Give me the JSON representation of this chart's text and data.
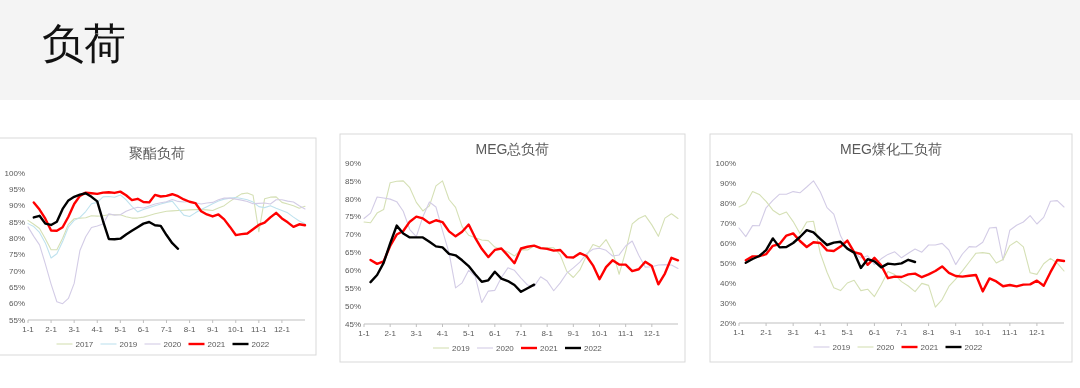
{
  "chart_data": [
    {
      "type": "other",
      "title": "负荷"
    },
    {
      "type": "line",
      "title": "聚酯负荷",
      "categories": [
        "1-1",
        null,
        null,
        null,
        "2-1",
        null,
        null,
        null,
        "3-1",
        null,
        null,
        null,
        "4-1",
        null,
        null,
        null,
        "5-1",
        null,
        null,
        null,
        "6-1",
        null,
        null,
        null,
        "7-1",
        null,
        null,
        null,
        "8-1",
        null,
        null,
        null,
        "9-1",
        null,
        null,
        null,
        "10-1",
        null,
        null,
        null,
        "11-1",
        null,
        null,
        null,
        "12-1",
        null,
        null,
        null,
        null
      ],
      "ylim": [
        55,
        100
      ],
      "yticks": [
        {
          "value": 55,
          "label": "55%"
        },
        {
          "value": 60,
          "label": "60%"
        },
        {
          "value": 65,
          "label": "65%"
        },
        {
          "value": 70,
          "label": "70%"
        },
        {
          "value": 75,
          "label": "75%"
        },
        {
          "value": 80,
          "label": "80%"
        },
        {
          "value": 85,
          "label": "85%"
        },
        {
          "value": 90,
          "label": "90%"
        },
        {
          "value": 95,
          "label": "95%"
        },
        {
          "value": 100,
          "label": "100%"
        }
      ],
      "legend": "bottom",
      "marker": "none",
      "line_style": "solid",
      "series": [
        {
          "name": "2017",
          "color": "#d5e0b5",
          "values": [
            85.5,
            84.3,
            83,
            79.9,
            76.5,
            76.5,
            80,
            84.3,
            86,
            86.2,
            86.3,
            86.9,
            86.8,
            86.9,
            87.2,
            87.2,
            87.2,
            86.6,
            86.2,
            86.2,
            86.5,
            87,
            87.5,
            87.9,
            88.3,
            88.4,
            88.5,
            88.6,
            88.7,
            88.8,
            88.8,
            88.7,
            88.5,
            89.3,
            90,
            91.3,
            92.5,
            93.6,
            93.9,
            93.2,
            82,
            92.1,
            92.6,
            92.7,
            91,
            90.5,
            90,
            89.2,
            89.8
          ]
        },
        {
          "name": "2019",
          "color": "#bfe2ee",
          "values": [
            84.5,
            83.6,
            81.8,
            78.6,
            74,
            75.3,
            79,
            83.4,
            85.5,
            86.4,
            88.2,
            90.6,
            91,
            92.7,
            92.8,
            92.6,
            93.3,
            91.8,
            89.8,
            88.1,
            88.8,
            89.4,
            90,
            90.5,
            91,
            91.4,
            89.2,
            87.1,
            86.7,
            87.8,
            88.8,
            89.7,
            90.6,
            91.4,
            92,
            92.3,
            92.5,
            92.2,
            91.8,
            91.1,
            89.7,
            89.4,
            90,
            89.2,
            88.5,
            87.8,
            86.5,
            85.3,
            84.5
          ]
        },
        {
          "name": "2020",
          "color": "#d3cce6",
          "values": [
            83.5,
            80.6,
            78,
            72.2,
            66,
            60.6,
            60,
            61.6,
            66.2,
            76.3,
            80.5,
            83.3,
            83.8,
            84.4,
            87.5,
            87.1,
            87.2,
            88.3,
            89,
            89.5,
            89.3,
            89.9,
            90.5,
            90.9,
            91.2,
            91.9,
            91.3,
            91.1,
            91.3,
            90.9,
            90.5,
            90.8,
            91,
            91.8,
            92.3,
            92.3,
            92,
            91.7,
            91.3,
            90.6,
            90.7,
            90.8,
            90.5,
            91.8,
            91.8,
            91.4,
            91.1,
            90,
            89
          ]
        },
        {
          "name": "2021",
          "color": "#ff0000",
          "values": [
            null,
            91,
            88.8,
            86,
            82.4,
            82.3,
            83.4,
            86.6,
            90.5,
            93,
            94,
            93.8,
            93.6,
            94,
            94.1,
            93.9,
            94.3,
            93.2,
            91.7,
            92.1,
            91.1,
            91,
            93.3,
            92.8,
            93,
            93.5,
            92.9,
            91.9,
            91.2,
            90.8,
            88.3,
            87.3,
            86.7,
            87.3,
            85.8,
            83.5,
            81,
            81.3,
            81.5,
            82.8,
            84.1,
            84.8,
            86.4,
            87.8,
            86.1,
            84.9,
            83.5,
            84.3,
            84
          ]
        },
        {
          "name": "2022",
          "color": "#000000",
          "values": [
            null,
            86.4,
            86.9,
            84.5,
            84.1,
            85.1,
            89,
            91.6,
            92.7,
            93.4,
            93.8,
            92.7,
            91.3,
            85.3,
            79.8,
            79.7,
            79.9,
            81.2,
            82.3,
            83.4,
            84.5,
            85,
            84,
            83.8,
            81,
            78.5,
            76.8,
            null,
            null,
            null,
            null,
            null,
            null,
            null,
            null,
            null,
            null,
            null,
            null,
            null,
            null,
            null,
            null,
            null,
            null,
            null,
            null,
            null,
            null
          ]
        }
      ]
    },
    {
      "type": "line",
      "title": "MEG总负荷",
      "categories": [
        "1-1",
        null,
        null,
        null,
        "2-1",
        null,
        null,
        null,
        "3-1",
        null,
        null,
        null,
        "4-1",
        null,
        null,
        null,
        "5-1",
        null,
        null,
        null,
        "6-1",
        null,
        null,
        null,
        "7-1",
        null,
        null,
        null,
        "8-1",
        null,
        null,
        null,
        "9-1",
        null,
        null,
        null,
        "10-1",
        null,
        null,
        null,
        "11-1",
        null,
        null,
        null,
        "12-1",
        null,
        null,
        null,
        null
      ],
      "ylim": [
        45,
        90
      ],
      "yticks": [
        {
          "value": 45,
          "label": "45%"
        },
        {
          "value": 50,
          "label": "50%"
        },
        {
          "value": 55,
          "label": "55%"
        },
        {
          "value": 60,
          "label": "60%"
        },
        {
          "value": 65,
          "label": "65%"
        },
        {
          "value": 70,
          "label": "70%"
        },
        {
          "value": 75,
          "label": "75%"
        },
        {
          "value": 80,
          "label": "80%"
        },
        {
          "value": 85,
          "label": "85%"
        },
        {
          "value": 90,
          "label": "90%"
        }
      ],
      "legend": "bottom",
      "marker": "none",
      "line_style": "solid",
      "series": [
        {
          "name": "2019",
          "color": "#d5e0b5",
          "values": [
            73.5,
            73.3,
            76,
            77,
            84.5,
            84.9,
            85,
            83.1,
            79,
            76.6,
            78,
            83.6,
            85,
            79.8,
            77.6,
            72.2,
            69.8,
            69.1,
            68.5,
            68.3,
            66.5,
            65.9,
            65.1,
            64,
            65.8,
            65.7,
            66.8,
            66.1,
            66.4,
            66.3,
            64.3,
            59.7,
            58,
            60.1,
            64.1,
            67.2,
            66.5,
            68.6,
            65.3,
            58.9,
            65.3,
            73,
            74.5,
            75.3,
            72.7,
            69.5,
            74.6,
            75.8,
            74.5
          ]
        },
        {
          "name": "2020",
          "color": "#d3cce6",
          "values": [
            74.5,
            76,
            80.5,
            80.2,
            79.9,
            79.2,
            76.5,
            71.4,
            69.4,
            75,
            79.1,
            77.7,
            71.1,
            64.9,
            55.1,
            56.5,
            60,
            58.3,
            51,
            54.2,
            54.4,
            58,
            60.7,
            60,
            57.8,
            55.9,
            55.5,
            58.2,
            57,
            54.3,
            56.5,
            59.2,
            60.7,
            62.3,
            64.6,
            65.9,
            66.2,
            65.6,
            64,
            64.3,
            66.8,
            68.2,
            64.2,
            60.9,
            61,
            61.5,
            61.6,
            61.5,
            60.5
          ]
        },
        {
          "name": "2021",
          "color": "#ff0000",
          "values": [
            null,
            62.9,
            61.8,
            62.5,
            66.8,
            70,
            71,
            73.6,
            75,
            74.5,
            73.2,
            74,
            73.5,
            70.9,
            69.5,
            70.8,
            72.8,
            69.1,
            66,
            63.7,
            65.7,
            66.1,
            64.1,
            62,
            66.1,
            66.6,
            66.9,
            66.2,
            66,
            65.5,
            65.7,
            63.7,
            63.6,
            64.8,
            64,
            61.4,
            57.5,
            60.9,
            62.8,
            61.6,
            61.6,
            59.8,
            60.3,
            62.4,
            61.2,
            56.1,
            59.1,
            63.5,
            62.8
          ]
        },
        {
          "name": "2022",
          "color": "#000000",
          "values": [
            null,
            56.7,
            58.7,
            62.1,
            67.5,
            72.5,
            70.3,
            69.2,
            69.2,
            69.2,
            68,
            66.7,
            66.4,
            64.6,
            64.2,
            62.8,
            61.2,
            58.9,
            56.8,
            57.2,
            59.6,
            57.7,
            57,
            55.9,
            54,
            55,
            56,
            null,
            null,
            null,
            null,
            null,
            null,
            null,
            null,
            null,
            null,
            null,
            null,
            null,
            null,
            null,
            null,
            null,
            null,
            null,
            null,
            null,
            null
          ]
        }
      ]
    },
    {
      "type": "line",
      "title": "MEG煤化工负荷",
      "categories": [
        "1-1",
        null,
        null,
        null,
        "2-1",
        null,
        null,
        null,
        "3-1",
        null,
        null,
        null,
        "4-1",
        null,
        null,
        null,
        "5-1",
        null,
        null,
        null,
        "6-1",
        null,
        null,
        null,
        "7-1",
        null,
        null,
        null,
        "8-1",
        null,
        null,
        null,
        "9-1",
        null,
        null,
        null,
        "10-1",
        null,
        null,
        null,
        "11-1",
        null,
        null,
        null,
        "12-1",
        null,
        null,
        null,
        null
      ],
      "ylim": [
        20,
        100
      ],
      "yticks": [
        {
          "value": 20,
          "label": "20%"
        },
        {
          "value": 30,
          "label": "30%"
        },
        {
          "value": 40,
          "label": "40%"
        },
        {
          "value": 50,
          "label": "50%"
        },
        {
          "value": 60,
          "label": "60%"
        },
        {
          "value": 70,
          "label": "70%"
        },
        {
          "value": 80,
          "label": "80%"
        },
        {
          "value": 90,
          "label": "90%"
        },
        {
          "value": 100,
          "label": "100%"
        }
      ],
      "legend": "bottom",
      "marker": "none",
      "line_style": "solid",
      "series": [
        {
          "name": "2019",
          "color": "#d3cce6",
          "values": [
            67.5,
            63.2,
            68.7,
            68.6,
            77.6,
            81.3,
            84.4,
            84.4,
            85.7,
            85.1,
            88,
            91.1,
            85.6,
            77.7,
            74.4,
            63.6,
            57,
            55.2,
            52.5,
            53.6,
            49.2,
            52.1,
            54.3,
            55.6,
            52.6,
            54.9,
            57,
            55.4,
            59,
            59,
            59.8,
            56.5,
            49.2,
            54.5,
            58.2,
            58,
            60.4,
            67.5,
            67.8,
            51.4,
            66.4,
            68.9,
            70.5,
            73.7,
            69.5,
            72.8,
            80.9,
            81.2,
            78
          ]
        },
        {
          "name": "2020",
          "color": "#d5e0b5",
          "values": [
            78,
            79.8,
            85.7,
            84.3,
            80.8,
            76.4,
            74.1,
            75.5,
            70.7,
            64.7,
            70.5,
            70.9,
            54.9,
            45.4,
            37.6,
            36.2,
            40,
            41.4,
            36.2,
            36.9,
            33.2,
            39.1,
            45.8,
            44.2,
            40.7,
            38.5,
            35.7,
            39.8,
            38.8,
            27.9,
            31.7,
            38.3,
            41.9,
            46.1,
            50.5,
            54.9,
            55.2,
            54.7,
            50,
            51.8,
            58.7,
            60.9,
            58.1,
            45.1,
            44.3,
            49.6,
            52.3,
            49.9,
            46
          ]
        },
        {
          "name": "2021",
          "color": "#ff0000",
          "values": [
            null,
            51.4,
            53.3,
            53.4,
            54.4,
            58.6,
            59.5,
            63.7,
            64.8,
            61,
            58,
            60.4,
            60,
            56.3,
            56,
            58.2,
            61.2,
            55.4,
            54.5,
            49.1,
            52.6,
            48.8,
            42.4,
            43.2,
            43,
            44.3,
            44.7,
            42.9,
            44.3,
            46,
            48.3,
            45.1,
            43.5,
            43.2,
            43.6,
            44,
            35.8,
            42.3,
            40.8,
            38.4,
            39,
            38.3,
            39.2,
            39.3,
            41.2,
            38.6,
            45.4,
            51.5,
            51
          ]
        },
        {
          "name": "2022",
          "color": "#000000",
          "values": [
            null,
            50.1,
            52,
            53.5,
            56.4,
            62.3,
            57.8,
            58,
            60,
            63,
            66.4,
            65.3,
            62.1,
            59,
            60.2,
            60.6,
            57.2,
            55.2,
            47.5,
            51.9,
            50.8,
            47.8,
            49.7,
            49.3,
            49.8,
            51.6,
            50.5,
            null,
            null,
            null,
            null,
            null,
            null,
            null,
            null,
            null,
            null,
            null,
            null,
            null,
            null,
            null,
            null,
            null,
            null,
            null,
            null,
            null,
            null
          ]
        }
      ]
    }
  ]
}
